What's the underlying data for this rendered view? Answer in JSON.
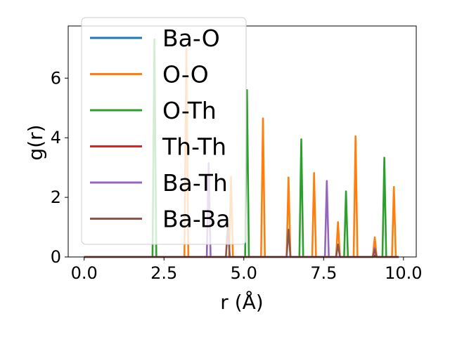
{
  "chart_data": {
    "type": "line",
    "xlabel": "r (Å)",
    "ylabel": "g(r)",
    "xlim": [
      -0.5,
      10.4
    ],
    "ylim": [
      0,
      7.75
    ],
    "xticks": [
      0.0,
      2.5,
      5.0,
      7.5,
      10.0
    ],
    "xtick_labels": [
      "0.0",
      "2.5",
      "5.0",
      "7.5",
      "10.0"
    ],
    "yticks": [
      0,
      2,
      4,
      6
    ],
    "ytick_labels": [
      "0",
      "2",
      "4",
      "6"
    ],
    "grid": false,
    "legend_position": "top-left",
    "x_range": [
      0.0,
      9.85
    ],
    "series": [
      {
        "name": "Ba-O",
        "color": "#1f77b4",
        "peaks": []
      },
      {
        "name": "O-O",
        "color": "#ff7f0e",
        "peaks": [
          [
            3.2,
            7.0
          ],
          [
            4.6,
            2.7
          ],
          [
            5.6,
            4.65
          ],
          [
            6.4,
            2.67
          ],
          [
            7.2,
            2.82
          ],
          [
            7.95,
            1.17
          ],
          [
            8.5,
            4.05
          ],
          [
            9.1,
            0.66
          ],
          [
            9.7,
            2.35
          ]
        ]
      },
      {
        "name": "O-Th",
        "color": "#2ca02c",
        "peaks": [
          [
            2.2,
            7.3
          ],
          [
            5.1,
            5.6
          ],
          [
            6.8,
            3.95
          ],
          [
            8.2,
            2.2
          ],
          [
            9.4,
            3.33
          ]
        ]
      },
      {
        "name": "Th-Th",
        "color": "#d62728",
        "peaks": [
          [
            9.1,
            0.05
          ]
        ]
      },
      {
        "name": "Ba-Th",
        "color": "#9467bd",
        "peaks": [
          [
            3.9,
            3.15
          ],
          [
            7.6,
            2.55
          ],
          [
            9.1,
            0.3
          ]
        ]
      },
      {
        "name": "Ba-Ba",
        "color": "#8c564b",
        "peaks": [
          [
            4.5,
            1.1
          ],
          [
            6.4,
            0.92
          ],
          [
            7.95,
            0.42
          ],
          [
            9.1,
            0.25
          ]
        ]
      }
    ]
  }
}
